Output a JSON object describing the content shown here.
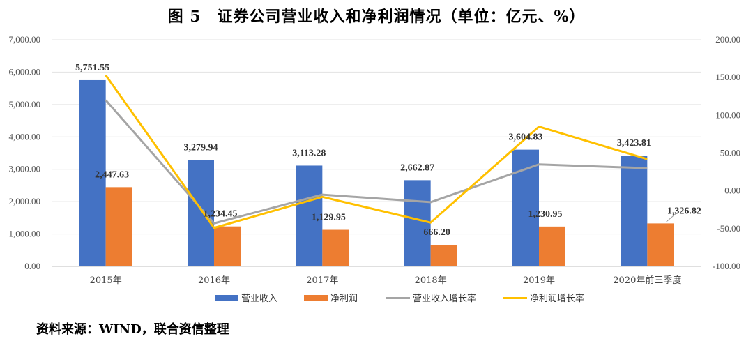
{
  "title": "图 5　证券公司营业收入和净利润情况（单位：亿元、%）",
  "source": "资料来源：WIND，联合资信整理",
  "colors": {
    "revenue": "#4472C4",
    "profit": "#ED7D31",
    "revenue_growth": "#A5A5A5",
    "profit_growth": "#FFC000",
    "highlight_label": "#C00000"
  },
  "chart_data": {
    "type": "bar",
    "categories": [
      "2015年",
      "2016年",
      "2017年",
      "2018年",
      "2019年",
      "2020年前三季度"
    ],
    "series": [
      {
        "name": "营业收入",
        "kind": "bar",
        "axis": "left",
        "values": [
          5751.55,
          3279.94,
          3113.28,
          2662.87,
          3604.83,
          3423.81
        ],
        "labels": [
          "5,751.55",
          "3,279.94",
          "3,113.28",
          "2,662.87",
          "3,604.83",
          "3,423.81"
        ]
      },
      {
        "name": "净利润",
        "kind": "bar",
        "axis": "left",
        "values": [
          2447.63,
          1234.45,
          1129.95,
          666.2,
          1230.95,
          1326.82
        ],
        "labels": [
          "2,447.63",
          "1,234.45",
          "1,129.95",
          "666.20",
          "1,230.95",
          "1,326.82"
        ]
      },
      {
        "name": "营业收入增长率",
        "kind": "line",
        "axis": "right",
        "values": [
          120.0,
          -43.0,
          -5.0,
          -15.0,
          35.0,
          30.0
        ]
      },
      {
        "name": "净利润增长率",
        "kind": "line",
        "axis": "right",
        "values": [
          153.0,
          -49.0,
          -8.0,
          -42.0,
          85.0,
          42.0
        ]
      }
    ],
    "highlighted_labels": [
      "3,423.81",
      "1,326.82"
    ],
    "ylim": [
      0,
      7000
    ],
    "yticks": [
      "0.00",
      "1,000.00",
      "2,000.00",
      "3,000.00",
      "4,000.00",
      "5,000.00",
      "6,000.00",
      "7,000.00"
    ],
    "y2lim": [
      -100,
      200
    ],
    "y2ticks": [
      "-100.00",
      "-50.00",
      "0.00",
      "50.00",
      "100.00",
      "150.00",
      "200.00"
    ],
    "grid": true,
    "legend_position": "bottom"
  }
}
